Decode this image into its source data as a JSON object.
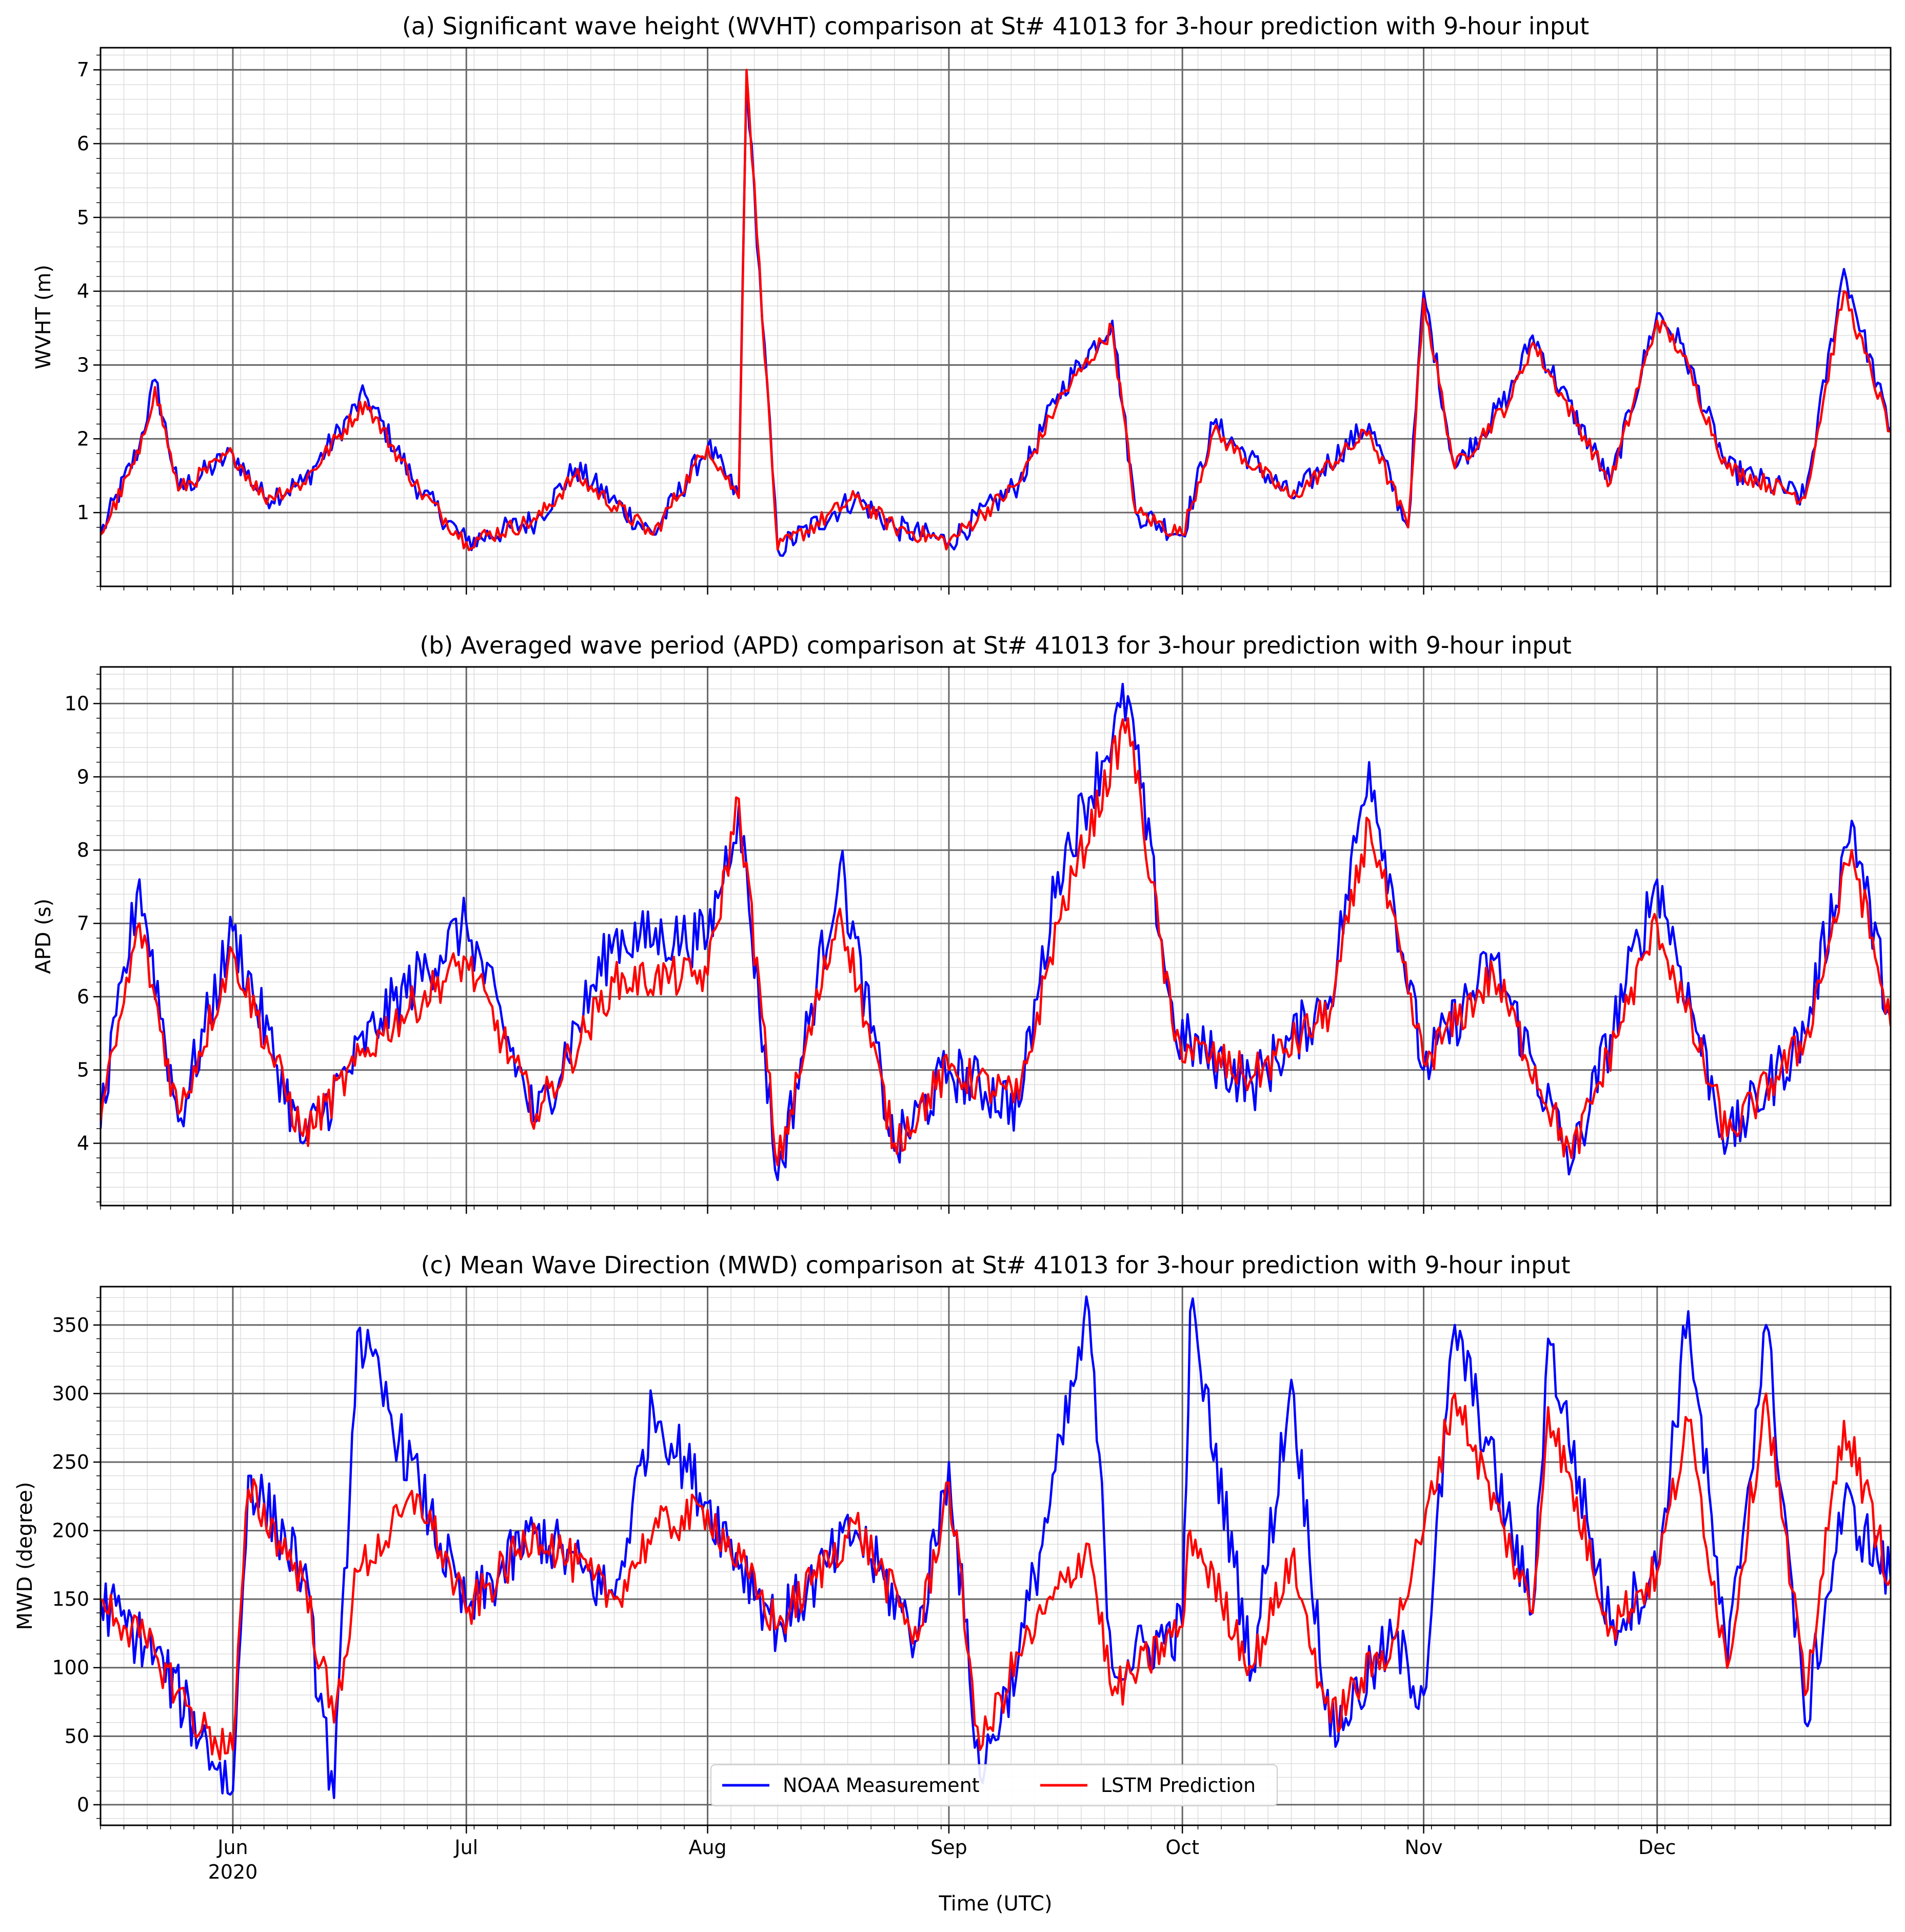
{
  "figure": {
    "xlabel": "Time (UTC)",
    "x_start": "2020-05-15",
    "x_end": "2020-12-31",
    "month_ticks": [
      {
        "date": "2020-06-01",
        "label": "Jun",
        "sublabel": "2020"
      },
      {
        "date": "2020-07-01",
        "label": "Jul",
        "sublabel": ""
      },
      {
        "date": "2020-08-01",
        "label": "Aug",
        "sublabel": ""
      },
      {
        "date": "2020-09-01",
        "label": "Sep",
        "sublabel": ""
      },
      {
        "date": "2020-10-01",
        "label": "Oct",
        "sublabel": ""
      },
      {
        "date": "2020-11-01",
        "label": "Nov",
        "sublabel": ""
      },
      {
        "date": "2020-12-01",
        "label": "Dec",
        "sublabel": ""
      }
    ],
    "legend": {
      "placement": "lower-center",
      "entries": [
        {
          "label": "NOAA Measurement",
          "color": "#0000ff"
        },
        {
          "label": "LSTM Prediction",
          "color": "#ff0000"
        }
      ]
    },
    "colors": {
      "measurement": "#0000ff",
      "prediction": "#ff0000",
      "major_grid": "#666666",
      "minor_grid": "#dddddd"
    }
  },
  "chart_data": [
    {
      "type": "line",
      "title": "(a) Significant wave height (WVHT) comparison at St# 41013 for 3-hour prediction with 9-hour input",
      "ylabel": "WVHT (m)",
      "ylim": [
        0,
        7.3
      ],
      "yticks": [
        1,
        2,
        3,
        4,
        5,
        6,
        7
      ],
      "grid": true,
      "series": [
        {
          "name": "NOAA Measurement",
          "x": [
            "2020-05-15",
            "2020-05-20",
            "2020-05-22",
            "2020-05-25",
            "2020-06-01",
            "2020-06-05",
            "2020-06-10",
            "2020-06-18",
            "2020-06-25",
            "2020-07-01",
            "2020-07-10",
            "2020-07-15",
            "2020-07-25",
            "2020-08-01",
            "2020-08-05",
            "2020-08-06",
            "2020-08-10",
            "2020-08-20",
            "2020-08-25",
            "2020-09-01",
            "2020-09-10",
            "2020-09-15",
            "2020-09-22",
            "2020-09-25",
            "2020-10-01",
            "2020-10-05",
            "2020-10-15",
            "2020-10-25",
            "2020-10-30",
            "2020-11-01",
            "2020-11-05",
            "2020-11-12",
            "2020-11-15",
            "2020-11-25",
            "2020-12-01",
            "2020-12-04",
            "2020-12-10",
            "2020-12-20",
            "2020-12-25",
            "2020-12-31"
          ],
          "values": [
            0.7,
            1.9,
            2.8,
            1.3,
            1.8,
            1.2,
            1.4,
            2.6,
            1.3,
            0.6,
            0.9,
            1.6,
            0.7,
            1.9,
            1.2,
            6.9,
            0.5,
            1.2,
            0.8,
            0.6,
            1.4,
            2.6,
            3.6,
            1.0,
            0.7,
            2.2,
            1.2,
            2.2,
            0.8,
            4.0,
            1.6,
            2.6,
            3.4,
            1.4,
            3.7,
            3.3,
            1.6,
            1.2,
            4.3,
            2.1
          ]
        },
        {
          "name": "LSTM Prediction",
          "x": [
            "2020-05-15",
            "2020-05-20",
            "2020-05-22",
            "2020-05-25",
            "2020-06-01",
            "2020-06-05",
            "2020-06-10",
            "2020-06-18",
            "2020-06-25",
            "2020-07-01",
            "2020-07-10",
            "2020-07-15",
            "2020-07-25",
            "2020-08-01",
            "2020-08-05",
            "2020-08-06",
            "2020-08-10",
            "2020-08-20",
            "2020-08-25",
            "2020-09-01",
            "2020-09-10",
            "2020-09-15",
            "2020-09-22",
            "2020-09-25",
            "2020-10-01",
            "2020-10-05",
            "2020-10-15",
            "2020-10-25",
            "2020-10-30",
            "2020-11-01",
            "2020-11-05",
            "2020-11-12",
            "2020-11-15",
            "2020-11-25",
            "2020-12-01",
            "2020-12-04",
            "2020-12-10",
            "2020-12-20",
            "2020-12-25",
            "2020-12-31"
          ],
          "values": [
            0.7,
            1.8,
            2.7,
            1.3,
            1.8,
            1.2,
            1.4,
            2.5,
            1.3,
            0.6,
            0.9,
            1.5,
            0.7,
            1.9,
            1.2,
            7.0,
            0.5,
            1.2,
            0.8,
            0.6,
            1.4,
            2.5,
            3.5,
            1.0,
            0.7,
            2.1,
            1.2,
            2.1,
            0.8,
            3.9,
            1.6,
            2.5,
            3.3,
            1.4,
            3.6,
            3.2,
            1.6,
            1.2,
            4.0,
            2.1
          ]
        }
      ]
    },
    {
      "type": "line",
      "title": "(b) Averaged wave period (APD) comparison at St# 41013 for 3-hour prediction with 9-hour input",
      "ylabel": "APD (s)",
      "ylim": [
        3.15,
        10.5
      ],
      "yticks": [
        4,
        5,
        6,
        7,
        8,
        9,
        10
      ],
      "grid": true,
      "series": [
        {
          "name": "NOAA Measurement",
          "x": [
            "2020-05-15",
            "2020-05-20",
            "2020-05-25",
            "2020-06-01",
            "2020-06-10",
            "2020-06-20",
            "2020-07-01",
            "2020-07-10",
            "2020-07-20",
            "2020-08-01",
            "2020-08-05",
            "2020-08-10",
            "2020-08-18",
            "2020-08-25",
            "2020-09-01",
            "2020-09-10",
            "2020-09-15",
            "2020-09-24",
            "2020-09-30",
            "2020-10-10",
            "2020-10-20",
            "2020-10-25",
            "2020-11-01",
            "2020-11-10",
            "2020-11-20",
            "2020-12-01",
            "2020-12-10",
            "2020-12-20",
            "2020-12-26",
            "2020-12-31"
          ],
          "values": [
            4.2,
            7.6,
            4.3,
            6.9,
            4.0,
            5.7,
            7.0,
            4.3,
            6.8,
            6.8,
            8.6,
            3.5,
            7.8,
            3.9,
            5.0,
            4.5,
            7.7,
            10.1,
            5.5,
            4.8,
            6.0,
            9.2,
            5.0,
            6.5,
            3.7,
            7.6,
            4.0,
            5.5,
            8.4,
            5.7
          ]
        },
        {
          "name": "LSTM Prediction",
          "x": [
            "2020-05-15",
            "2020-05-20",
            "2020-05-25",
            "2020-06-01",
            "2020-06-10",
            "2020-06-20",
            "2020-07-01",
            "2020-07-10",
            "2020-07-20",
            "2020-08-01",
            "2020-08-05",
            "2020-08-10",
            "2020-08-18",
            "2020-08-25",
            "2020-09-01",
            "2020-09-10",
            "2020-09-15",
            "2020-09-24",
            "2020-09-30",
            "2020-10-10",
            "2020-10-20",
            "2020-10-25",
            "2020-11-01",
            "2020-11-10",
            "2020-11-20",
            "2020-12-01",
            "2020-12-10",
            "2020-12-20",
            "2020-12-26",
            "2020-12-31"
          ],
          "values": [
            4.3,
            7.0,
            4.4,
            6.6,
            4.1,
            5.5,
            6.5,
            4.4,
            6.2,
            6.3,
            8.7,
            3.7,
            7.2,
            4.0,
            5.0,
            4.6,
            7.0,
            9.8,
            5.4,
            4.9,
            5.8,
            8.4,
            5.1,
            6.3,
            3.8,
            7.0,
            4.1,
            5.4,
            8.0,
            5.6
          ]
        }
      ]
    },
    {
      "type": "line",
      "title": "(c) Mean Wave Direction (MWD) comparison at St# 41013 for 3-hour prediction with 9-hour input",
      "ylabel": "MWD (degree)",
      "ylim": [
        -15,
        378
      ],
      "yticks": [
        0,
        50,
        100,
        150,
        200,
        250,
        300,
        350
      ],
      "grid": true,
      "series": [
        {
          "name": "NOAA Measurement",
          "x": [
            "2020-05-15",
            "2020-05-22",
            "2020-05-28",
            "2020-06-01",
            "2020-06-03",
            "2020-06-10",
            "2020-06-14",
            "2020-06-17",
            "2020-06-25",
            "2020-07-01",
            "2020-07-10",
            "2020-07-20",
            "2020-07-25",
            "2020-08-01",
            "2020-08-10",
            "2020-08-20",
            "2020-08-28",
            "2020-09-01",
            "2020-09-05",
            "2020-09-10",
            "2020-09-19",
            "2020-09-22",
            "2020-10-01",
            "2020-10-02",
            "2020-10-10",
            "2020-10-15",
            "2020-10-20",
            "2020-10-28",
            "2020-11-01",
            "2020-11-05",
            "2020-11-15",
            "2020-11-17",
            "2020-11-25",
            "2020-12-01",
            "2020-12-05",
            "2020-12-10",
            "2020-12-15",
            "2020-12-20",
            "2020-12-25",
            "2020-12-31"
          ],
          "values": [
            150,
            110,
            50,
            10,
            240,
            170,
            5,
            345,
            230,
            140,
            200,
            150,
            290,
            220,
            130,
            200,
            120,
            250,
            20,
            110,
            360,
            100,
            130,
            360,
            100,
            310,
            50,
            120,
            80,
            350,
            140,
            340,
            130,
            170,
            360,
            100,
            350,
            60,
            220,
            165
          ]
        },
        {
          "name": "LSTM Prediction",
          "x": [
            "2020-05-15",
            "2020-05-22",
            "2020-05-28",
            "2020-06-01",
            "2020-06-03",
            "2020-06-10",
            "2020-06-14",
            "2020-06-17",
            "2020-06-25",
            "2020-07-01",
            "2020-07-10",
            "2020-07-20",
            "2020-07-25",
            "2020-08-01",
            "2020-08-10",
            "2020-08-20",
            "2020-08-28",
            "2020-09-01",
            "2020-09-05",
            "2020-09-10",
            "2020-09-19",
            "2020-09-22",
            "2020-10-01",
            "2020-10-02",
            "2020-10-10",
            "2020-10-15",
            "2020-10-20",
            "2020-10-28",
            "2020-11-01",
            "2020-11-05",
            "2020-11-15",
            "2020-11-17",
            "2020-11-25",
            "2020-12-01",
            "2020-12-05",
            "2020-12-10",
            "2020-12-15",
            "2020-12-20",
            "2020-12-25",
            "2020-12-31"
          ],
          "values": [
            150,
            110,
            55,
            40,
            230,
            165,
            60,
            170,
            225,
            140,
            200,
            150,
            200,
            215,
            130,
            205,
            120,
            235,
            40,
            110,
            190,
            80,
            130,
            200,
            100,
            180,
            60,
            120,
            200,
            300,
            140,
            290,
            130,
            170,
            280,
            100,
            300,
            80,
            280,
            165
          ]
        }
      ]
    }
  ]
}
